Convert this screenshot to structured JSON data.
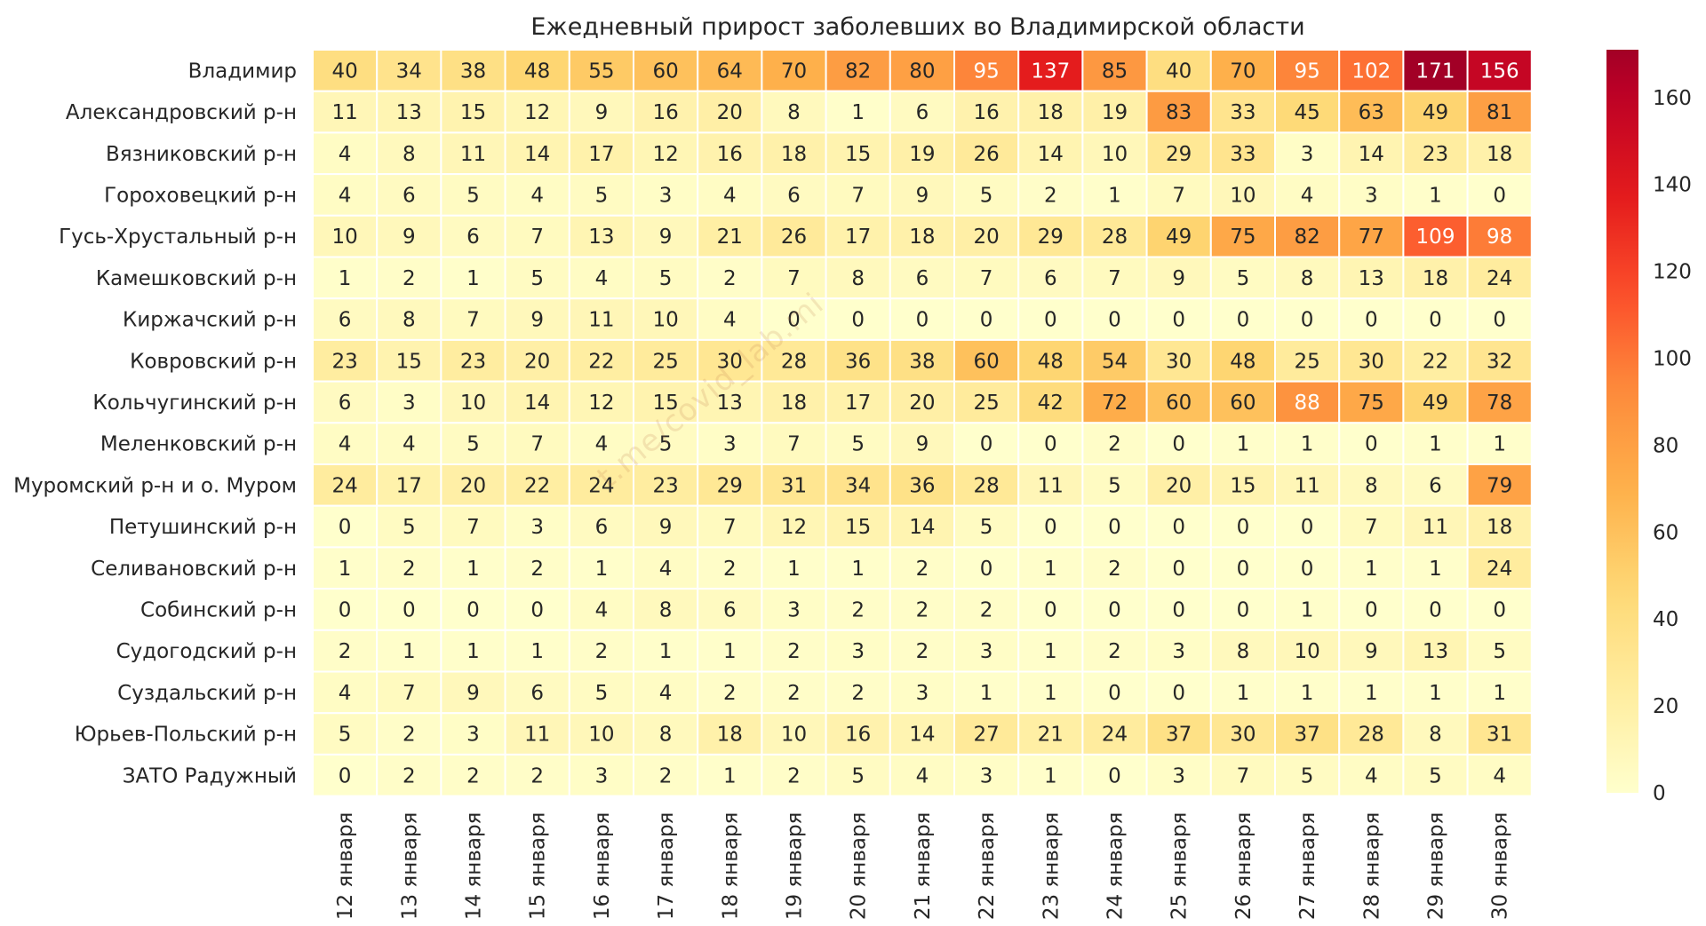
{
  "chart_data": {
    "type": "heatmap",
    "title": "Ежедневный прирост заболевших во Владимирской области",
    "rows": [
      "Владимир",
      "Александровский р-н",
      "Вязниковский р-н",
      "Гороховецкий р-н",
      "Гусь-Хрустальный р-н",
      "Камешковский р-н",
      "Киржачский р-н",
      "Ковровский р-н",
      "Кольчугинский р-н",
      "Меленковский р-н",
      "Муромский р-н и о. Муром",
      "Петушинский р-н",
      "Селивановский р-н",
      "Собинский р-н",
      "Судогодский р-н",
      "Суздальский р-н",
      "Юрьев-Польский р-н",
      "ЗАТО Радужный"
    ],
    "columns": [
      "12 января",
      "13 января",
      "14 января",
      "15 января",
      "16 января",
      "17 января",
      "18 января",
      "19 января",
      "20 января",
      "21 января",
      "22 января",
      "23 января",
      "24 января",
      "25 января",
      "26 января",
      "27 января",
      "28 января",
      "29 января",
      "30 января"
    ],
    "values": [
      [
        40,
        34,
        38,
        48,
        55,
        60,
        64,
        70,
        82,
        80,
        95,
        137,
        85,
        40,
        70,
        95,
        102,
        171,
        156
      ],
      [
        11,
        13,
        15,
        12,
        9,
        16,
        20,
        8,
        1,
        6,
        16,
        18,
        19,
        83,
        33,
        45,
        63,
        49,
        81
      ],
      [
        4,
        8,
        11,
        14,
        17,
        12,
        16,
        18,
        15,
        19,
        26,
        14,
        10,
        29,
        33,
        3,
        14,
        23,
        18
      ],
      [
        4,
        6,
        5,
        4,
        5,
        3,
        4,
        6,
        7,
        9,
        5,
        2,
        1,
        7,
        10,
        4,
        3,
        1,
        0
      ],
      [
        10,
        9,
        6,
        7,
        13,
        9,
        21,
        26,
        17,
        18,
        20,
        29,
        28,
        49,
        75,
        82,
        77,
        109,
        98
      ],
      [
        1,
        2,
        1,
        5,
        4,
        5,
        2,
        7,
        8,
        6,
        7,
        6,
        7,
        9,
        5,
        8,
        13,
        18,
        24
      ],
      [
        6,
        8,
        7,
        9,
        11,
        10,
        4,
        0,
        0,
        0,
        0,
        0,
        0,
        0,
        0,
        0,
        0,
        0,
        0
      ],
      [
        23,
        15,
        23,
        20,
        22,
        25,
        30,
        28,
        36,
        38,
        60,
        48,
        54,
        30,
        48,
        25,
        30,
        22,
        32
      ],
      [
        6,
        3,
        10,
        14,
        12,
        15,
        13,
        18,
        17,
        20,
        25,
        42,
        72,
        60,
        60,
        88,
        75,
        49,
        78
      ],
      [
        4,
        4,
        5,
        7,
        4,
        5,
        3,
        7,
        5,
        9,
        0,
        0,
        2,
        0,
        1,
        1,
        0,
        1,
        1
      ],
      [
        24,
        17,
        20,
        22,
        24,
        23,
        29,
        31,
        34,
        36,
        28,
        11,
        5,
        20,
        15,
        11,
        8,
        6,
        79
      ],
      [
        0,
        5,
        7,
        3,
        6,
        9,
        7,
        12,
        15,
        14,
        5,
        0,
        0,
        0,
        0,
        0,
        7,
        11,
        18
      ],
      [
        1,
        2,
        1,
        2,
        1,
        4,
        2,
        1,
        1,
        2,
        0,
        1,
        2,
        0,
        0,
        0,
        1,
        1,
        24
      ],
      [
        0,
        0,
        0,
        0,
        4,
        8,
        6,
        3,
        2,
        2,
        2,
        0,
        0,
        0,
        0,
        1,
        0,
        0,
        0
      ],
      [
        2,
        1,
        1,
        1,
        2,
        1,
        1,
        2,
        3,
        2,
        3,
        1,
        2,
        3,
        8,
        10,
        9,
        13,
        5
      ],
      [
        4,
        7,
        9,
        6,
        5,
        4,
        2,
        2,
        2,
        3,
        1,
        1,
        0,
        0,
        1,
        1,
        1,
        1,
        1
      ],
      [
        5,
        2,
        3,
        11,
        10,
        8,
        18,
        10,
        16,
        14,
        27,
        21,
        24,
        37,
        30,
        37,
        28,
        8,
        31
      ],
      [
        0,
        2,
        2,
        2,
        3,
        2,
        1,
        2,
        5,
        4,
        3,
        1,
        0,
        3,
        7,
        5,
        4,
        5,
        4
      ]
    ],
    "colorbar": {
      "range": [
        0,
        171
      ],
      "ticks": [
        0,
        20,
        40,
        60,
        80,
        100,
        120,
        140,
        160
      ],
      "colormap": "YlOrRd"
    },
    "colors": {
      "grid": "#ffffff",
      "text_dark": "#262626",
      "text_light": "#ffffff"
    }
  },
  "watermark": "t.me/covid_lab.mi"
}
